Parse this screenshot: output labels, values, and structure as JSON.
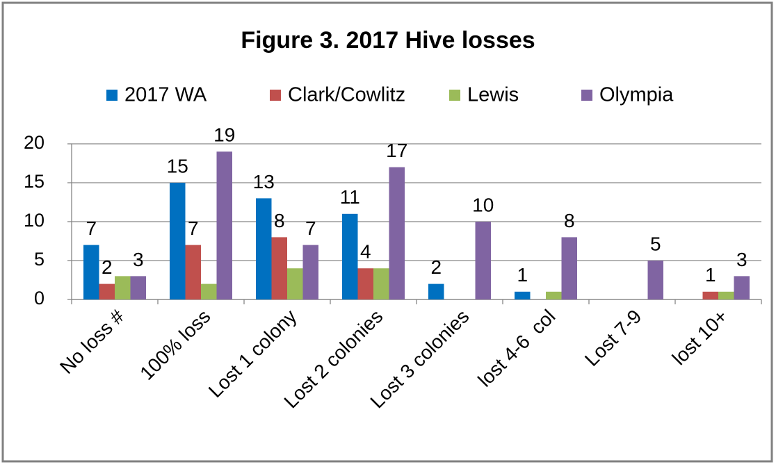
{
  "chart_data": {
    "type": "bar",
    "title": "Figure 3. 2017 Hive losses",
    "categories": [
      "No loss #",
      "100% loss",
      "Lost 1 colony",
      "Lost 2 colonies",
      "Lost 3 colonies",
      "lost 4-6  col",
      "Lost 7-9",
      "lost 10+"
    ],
    "series": [
      {
        "name": "2017 WA",
        "color": "#0070c0",
        "values": [
          7,
          15,
          13,
          11,
          2,
          1,
          0,
          0
        ],
        "data_labels": true
      },
      {
        "name": "Clark/Cowlitz",
        "color": "#c0504d",
        "values": [
          2,
          7,
          8,
          4,
          0,
          0,
          0,
          1
        ],
        "data_labels": true
      },
      {
        "name": "Lewis",
        "color": "#9bbb59",
        "values": [
          3,
          2,
          4,
          4,
          0,
          1,
          0,
          1
        ],
        "data_labels": false
      },
      {
        "name": "Olympia",
        "color": "#8064a2",
        "values": [
          3,
          19,
          7,
          17,
          10,
          8,
          5,
          3
        ],
        "data_labels": true
      }
    ],
    "ylim": [
      0,
      20
    ],
    "yticks": [
      0,
      5,
      10,
      15,
      20
    ],
    "grid": true,
    "legend": "top"
  }
}
